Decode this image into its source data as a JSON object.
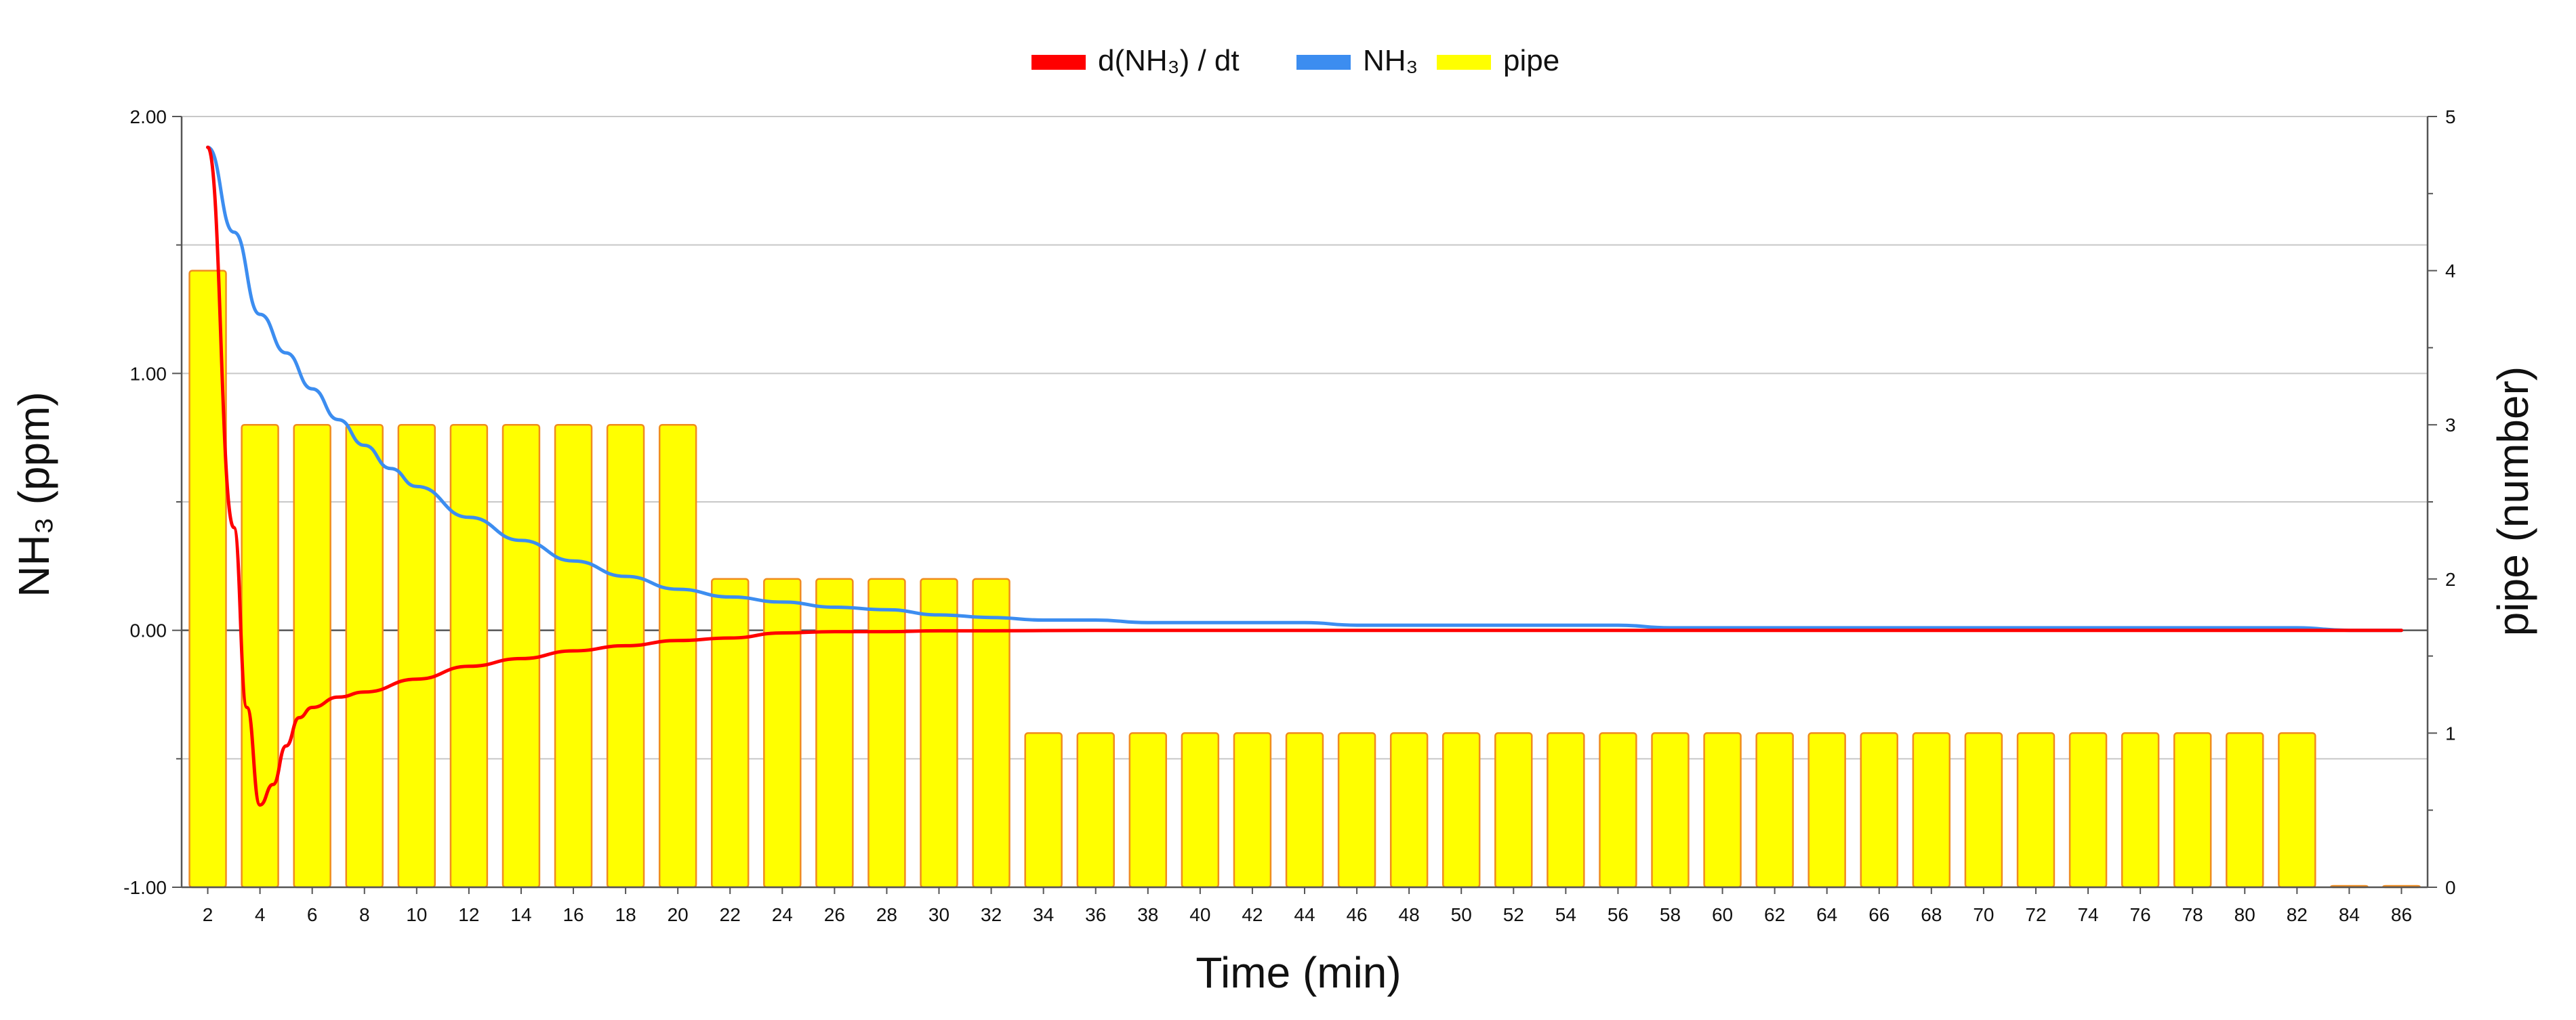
{
  "chart_data": {
    "type": "bar",
    "title": "",
    "legend": {
      "placement": "top",
      "items": [
        {
          "name": "d(NH₃) / dt",
          "color": "#ff0000"
        },
        {
          "name": "NH₃",
          "color": "#3c8df0"
        },
        {
          "name": "pipe",
          "color": "#ffff00"
        }
      ]
    },
    "xlabel": "Time (min)",
    "ylabel_left": "NH₃ (ppm)",
    "ylabel_right": "pipe (number)",
    "x_range": [
      1,
      87
    ],
    "ylim_left": [
      -1,
      2
    ],
    "ylim_right": [
      0,
      5
    ],
    "left_ticks": [
      "2.00",
      "1.00",
      "0.00",
      "-1.00"
    ],
    "right_ticks": [
      "5",
      "4",
      "3",
      "2",
      "1",
      "0"
    ],
    "x_ticks": [
      "2",
      "4",
      "6",
      "8",
      "10",
      "12",
      "14",
      "16",
      "18",
      "20",
      "22",
      "24",
      "26",
      "28",
      "30",
      "32",
      "34",
      "36",
      "38",
      "40",
      "42",
      "44",
      "46",
      "48",
      "50",
      "52",
      "54",
      "56",
      "58",
      "60",
      "62",
      "64",
      "66",
      "68",
      "70",
      "72",
      "74",
      "76",
      "78",
      "80",
      "82",
      "84",
      "86"
    ],
    "grid": true,
    "bars": {
      "name": "pipe",
      "axis": "right",
      "color": "#ffff00",
      "edge_color": "#f08c1e",
      "x": [
        2,
        4,
        6,
        8,
        10,
        12,
        14,
        16,
        18,
        20,
        22,
        24,
        26,
        28,
        30,
        32,
        34,
        36,
        38,
        40,
        42,
        44,
        46,
        48,
        50,
        52,
        54,
        56,
        58,
        60,
        62,
        64,
        66,
        68,
        70,
        72,
        74,
        76,
        78,
        80,
        82,
        84,
        86
      ],
      "values": [
        4,
        3,
        3,
        3,
        3,
        3,
        3,
        3,
        3,
        3,
        2,
        2,
        2,
        2,
        2,
        2,
        1,
        1,
        1,
        1,
        1,
        1,
        1,
        1,
        1,
        1,
        1,
        1,
        1,
        1,
        1,
        1,
        1,
        1,
        1,
        1,
        1,
        1,
        1,
        1,
        1,
        0,
        0
      ]
    },
    "series": [
      {
        "name": "NH₃",
        "axis": "left",
        "color": "#3c8df0",
        "x": [
          2,
          3,
          4,
          5,
          6,
          7,
          8,
          9,
          10,
          12,
          14,
          16,
          18,
          20,
          22,
          24,
          26,
          28,
          30,
          32,
          34,
          36,
          38,
          40,
          42,
          44,
          46,
          48,
          50,
          52,
          54,
          56,
          58,
          60,
          64,
          68,
          72,
          76,
          80,
          82,
          84,
          86
        ],
        "y": [
          1.88,
          1.55,
          1.23,
          1.08,
          0.94,
          0.82,
          0.72,
          0.63,
          0.56,
          0.44,
          0.35,
          0.27,
          0.21,
          0.16,
          0.13,
          0.11,
          0.09,
          0.08,
          0.06,
          0.05,
          0.04,
          0.04,
          0.03,
          0.03,
          0.03,
          0.03,
          0.02,
          0.02,
          0.02,
          0.02,
          0.02,
          0.02,
          0.01,
          0.01,
          0.01,
          0.01,
          0.01,
          0.01,
          0.01,
          0.01,
          0.0,
          0.0
        ]
      },
      {
        "name": "d(NH₃) / dt",
        "axis": "left",
        "color": "#ff0000",
        "x": [
          2,
          3,
          3.5,
          4,
          4.5,
          5,
          5.5,
          6,
          7,
          8,
          10,
          12,
          14,
          16,
          18,
          20,
          22,
          24,
          26,
          28,
          30,
          32,
          36,
          40,
          50,
          60,
          70,
          80,
          86
        ],
        "y": [
          1.88,
          0.4,
          -0.3,
          -0.68,
          -0.6,
          -0.45,
          -0.34,
          -0.3,
          -0.26,
          -0.24,
          -0.19,
          -0.14,
          -0.11,
          -0.08,
          -0.06,
          -0.04,
          -0.03,
          -0.01,
          -0.005,
          -0.005,
          -0.002,
          -0.002,
          0.0,
          0.0,
          0.0,
          0.0,
          0.0,
          0.0,
          0.0
        ]
      }
    ]
  }
}
